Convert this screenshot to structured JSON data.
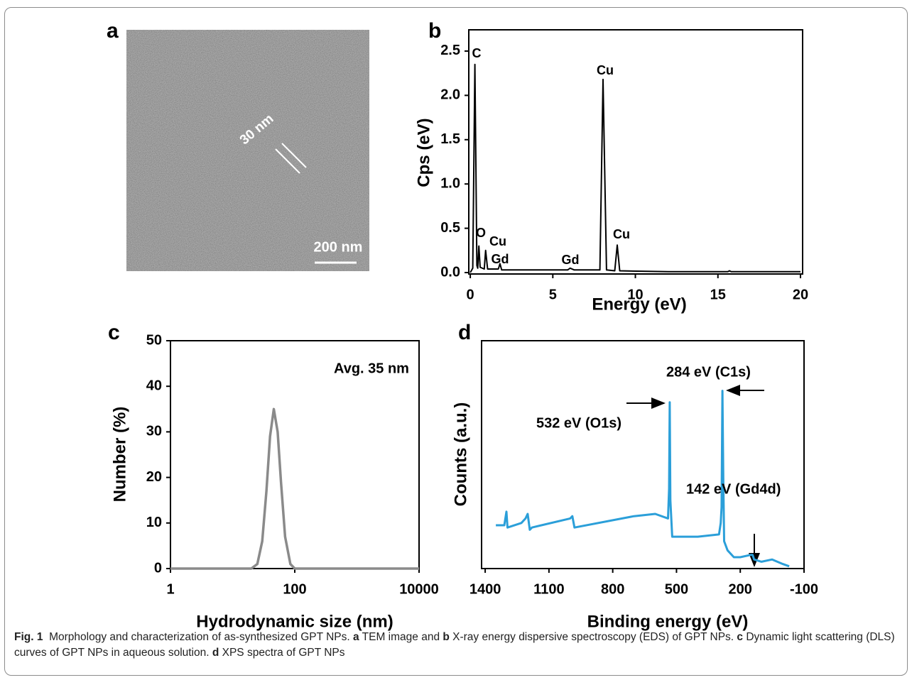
{
  "image_panel": {
    "panel": "a",
    "label": "30 nm",
    "scale_bar": "200 nm"
  },
  "chart_data": [
    {
      "type": "line",
      "panel": "b",
      "x_label": "Energy (eV)",
      "y_label": "Cps (eV)",
      "xlim": [
        -0.09,
        20.13
      ],
      "ylim": [
        -0.016,
        2.74
      ],
      "xticks": [
        0,
        5,
        10,
        15,
        20
      ],
      "yticks": [
        {
          "value": 0,
          "label": "0.0"
        },
        0.5,
        {
          "value": 1,
          "label": "1.0"
        },
        1.5,
        {
          "value": 2,
          "label": "2.0"
        },
        2.5
      ],
      "x": [
        0,
        0.15,
        0.28,
        0.4,
        0.45,
        0.52,
        0.6,
        0.85,
        0.93,
        1.05,
        1.7,
        1.8,
        1.9,
        3,
        5.9,
        6.05,
        6.3,
        7,
        7.85,
        8.04,
        8.25,
        8.75,
        8.9,
        9.05,
        12,
        15.6,
        15.7,
        15.8,
        20
      ],
      "series": [
        {
          "color": "#000000",
          "values": [
            0.0,
            0.05,
            2.35,
            0.08,
            0.05,
            0.3,
            0.06,
            0.04,
            0.25,
            0.04,
            0.04,
            0.1,
            0.03,
            0.03,
            0.03,
            0.05,
            0.03,
            0.03,
            0.03,
            2.18,
            0.03,
            0.02,
            0.31,
            0.02,
            0.01,
            0.01,
            0.02,
            0.01,
            0.01
          ]
        }
      ],
      "annotations": [
        "C",
        "O",
        "Cu",
        "Gd",
        "Gd",
        "Cu",
        "Cu"
      ]
    },
    {
      "type": "line",
      "panel": "c",
      "x_label": "Hydrodynamic size (nm)",
      "y_label": "Number (%)",
      "xlog": true,
      "xlim": [
        1,
        10000
      ],
      "ylim": [
        0,
        50
      ],
      "xticks": [
        1,
        100,
        10000
      ],
      "yticks": [
        0,
        10,
        20,
        30,
        40,
        50
      ],
      "x": [
        1,
        20,
        25,
        30,
        35,
        40,
        46,
        53,
        60,
        70,
        85,
        100,
        10000
      ],
      "series": [
        {
          "color": "#8a8a8a",
          "values": [
            0,
            0,
            1,
            6,
            17,
            29,
            35,
            30,
            19,
            7,
            1,
            0,
            0
          ]
        }
      ],
      "annotations": [
        "Avg. 35 nm"
      ]
    },
    {
      "type": "line",
      "panel": "d",
      "x_label": "Binding energy (eV)",
      "y_label": "Counts (a.u.)",
      "xlim": [
        1417,
        -100
      ],
      "ylim": [
        0,
        100
      ],
      "xticks": [
        1400,
        1100,
        800,
        500,
        200,
        -100
      ],
      "yticks": [],
      "x": [
        1350,
        1310,
        1300,
        1295,
        1230,
        1210,
        1200,
        1190,
        1180,
        1000,
        990,
        980,
        700,
        600,
        540,
        535,
        532,
        529,
        520,
        400,
        300,
        292,
        288,
        284,
        280,
        276,
        260,
        230,
        200,
        150,
        142,
        135,
        100,
        50,
        0,
        -30
      ],
      "series": [
        {
          "color": "#2b9fd9",
          "values": [
            19,
            19,
            25,
            18,
            20,
            22,
            24,
            17,
            18,
            22,
            23,
            18,
            23,
            24,
            22,
            35,
            73,
            30,
            14,
            14,
            15,
            20,
            27,
            78,
            40,
            12,
            8,
            5,
            5,
            6,
            6,
            4,
            3,
            4,
            2,
            1
          ]
        }
      ],
      "annotations": [
        "284 eV (C1s)",
        "532 eV (O1s)",
        "142 eV (Gd4d)"
      ]
    }
  ],
  "caption": [
    {
      "text": "Fig. 1",
      "bold": true
    },
    {
      "text": "  Morphology and characterization of as-synthesized GPT NPs. ",
      "bold": false
    },
    {
      "text": "a",
      "bold": true
    },
    {
      "text": " TEM image and ",
      "bold": false
    },
    {
      "text": "b",
      "bold": true
    },
    {
      "text": " X-ray energy dispersive spectroscopy (EDS) of GPT NPs. ",
      "bold": false
    },
    {
      "text": "c",
      "bold": true
    },
    {
      "text": " Dynamic light scattering (DLS) curves of GPT NPs in aqueous solution. ",
      "bold": false
    },
    {
      "text": "d",
      "bold": true
    },
    {
      "text": " XPS spectra of GPT NPs",
      "bold": false
    }
  ]
}
